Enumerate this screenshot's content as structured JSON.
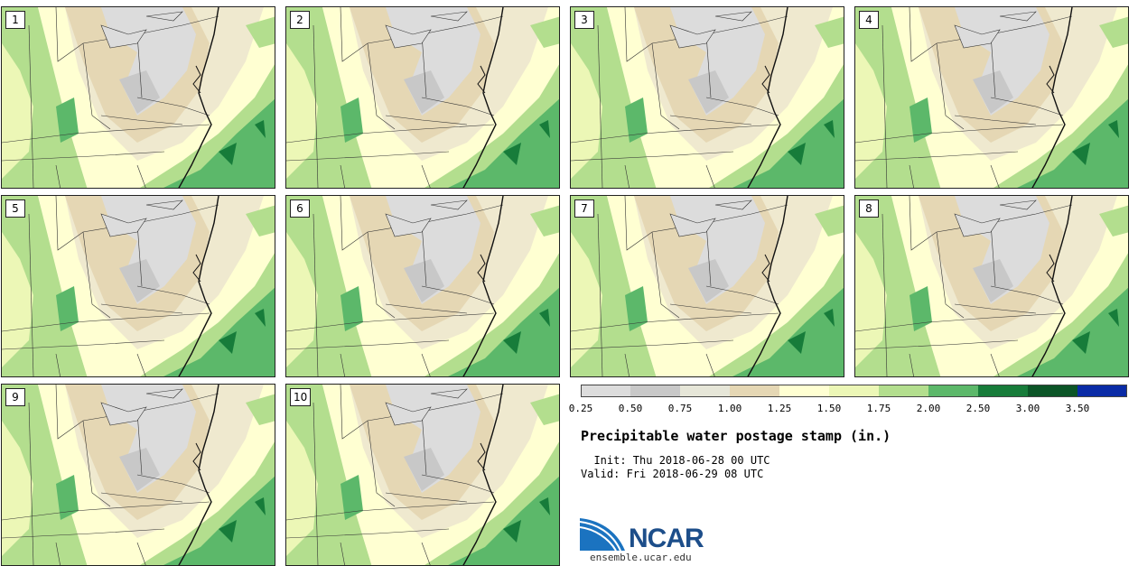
{
  "panels": [
    {
      "label": "1"
    },
    {
      "label": "2"
    },
    {
      "label": "3"
    },
    {
      "label": "4"
    },
    {
      "label": "5"
    },
    {
      "label": "6"
    },
    {
      "label": "7"
    },
    {
      "label": "8"
    },
    {
      "label": "9"
    },
    {
      "label": "10"
    }
  ],
  "colorbar": {
    "bins": [
      {
        "lo": 0.25,
        "hi": 0.5,
        "color": "#dcdcdc"
      },
      {
        "lo": 0.5,
        "hi": 0.75,
        "color": "#c8c8c8"
      },
      {
        "lo": 0.75,
        "hi": 1.0,
        "color": "#e6e6d8"
      },
      {
        "lo": 1.0,
        "hi": 1.25,
        "color": "#e5d7b4"
      },
      {
        "lo": 1.25,
        "hi": 1.5,
        "color": "#ffffd2"
      },
      {
        "lo": 1.5,
        "hi": 1.75,
        "color": "#ecf7b6"
      },
      {
        "lo": 1.75,
        "hi": 2.0,
        "color": "#b3de8e"
      },
      {
        "lo": 2.0,
        "hi": 2.5,
        "color": "#5cb86a"
      },
      {
        "lo": 2.5,
        "hi": 3.0,
        "color": "#177c3a"
      },
      {
        "lo": 3.0,
        "hi": 3.5,
        "color": "#0b5527"
      },
      {
        "lo": 3.5,
        "hi": 4.0,
        "color": "#0a2ba6"
      }
    ],
    "tick_labels": [
      "0.25",
      "0.50",
      "0.75",
      "1.00",
      "1.25",
      "1.50",
      "1.75",
      "2.00",
      "2.50",
      "3.00",
      "3.50"
    ]
  },
  "title": "Precipitable water postage stamp (in.)",
  "init_line": "  Init: Thu 2018-06-28 00 UTC",
  "valid_line": "Valid: Fri 2018-06-29 08 UTC",
  "logo": {
    "text": "NCAR",
    "url": "ensemble.ucar.edu",
    "color": "#1d4e8a"
  }
}
